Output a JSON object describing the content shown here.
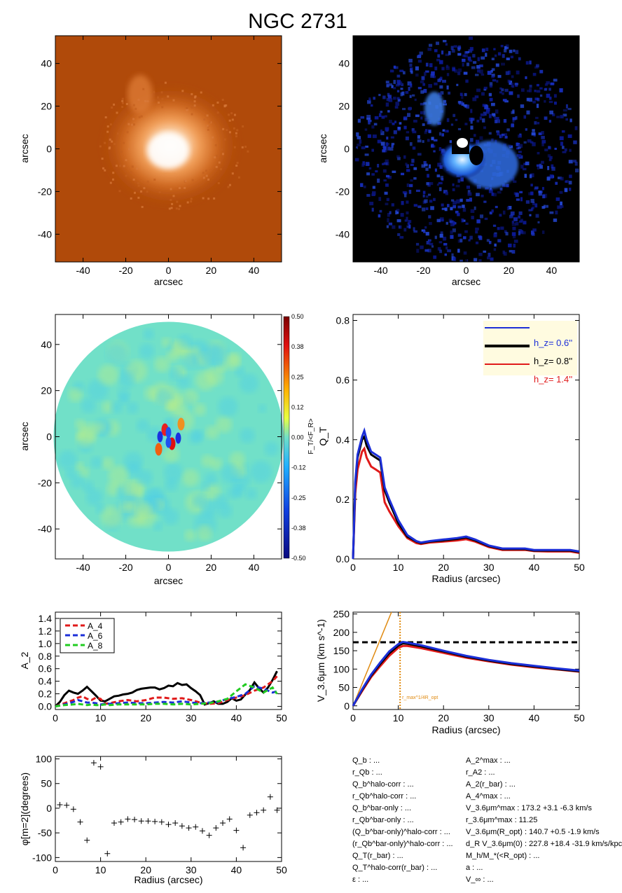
{
  "title": "NGC 2731",
  "colors": {
    "blue": "#1c2fd8",
    "black": "#000000",
    "red": "#e01a1a",
    "green": "#22cc22",
    "orange": "#e08a10",
    "legend_bg": "#fffbe0",
    "image1_bg": "#b04a0a",
    "image2_bg": "#000000",
    "field_bg": "#71e0c8"
  },
  "chart_data": [
    {
      "id": "panel-1",
      "type": "heatmap",
      "title": "",
      "xlabel": "arcsec",
      "ylabel": "arcsec",
      "xlim": [
        -53,
        53
      ],
      "ylim": [
        -53,
        53
      ],
      "x_ticks": [
        -40,
        -20,
        0,
        20,
        40
      ],
      "y_ticks": [
        -40,
        -20,
        0,
        20,
        40
      ],
      "colormap": "orange"
    },
    {
      "id": "panel-2",
      "type": "heatmap",
      "title": "",
      "xlabel": "arcsec",
      "ylabel": "arcsec",
      "xlim": [
        -53,
        53
      ],
      "ylim": [
        -53,
        53
      ],
      "x_ticks": [
        -40,
        -20,
        0,
        20,
        40
      ],
      "y_ticks": [
        -40,
        -20,
        0,
        20,
        40
      ],
      "colormap": "blue"
    },
    {
      "id": "panel-3",
      "type": "heatmap",
      "title": "",
      "xlabel": "arcsec",
      "ylabel": "arcsec",
      "xlim": [
        -53,
        53
      ],
      "ylim": [
        -53,
        53
      ],
      "x_ticks": [
        -40,
        -20,
        0,
        20,
        40
      ],
      "y_ticks": [
        -40,
        -20,
        0,
        20,
        40
      ],
      "colorbar": {
        "label": "F_T/<F_R>",
        "range": [
          -0.5,
          0.5
        ],
        "ticks": [
          "0.50",
          "0.38",
          "0.25",
          "0.12",
          "0.00",
          "-0.12",
          "-0.25",
          "-0.38",
          "-0.50"
        ]
      }
    },
    {
      "id": "panel-4",
      "type": "line",
      "xlabel": "Radius (arcsec)",
      "ylabel": "Q_T",
      "xlim": [
        0,
        50
      ],
      "ylim": [
        0,
        0.82
      ],
      "x_ticks": [
        0,
        10,
        20,
        30,
        40,
        50
      ],
      "y_ticks": [
        "0.0",
        "0.2",
        "0.4",
        "0.6",
        "0.8"
      ],
      "legend": {
        "position": "top-right",
        "entries": [
          {
            "label": "h_z= 0.6''",
            "color": "#1c2fd8"
          },
          {
            "label": "h_z= 0.8''",
            "color": "#000000"
          },
          {
            "label": "h_z= 1.4''",
            "color": "#e01a1a"
          }
        ]
      },
      "series": [
        {
          "name": "h_z= 0.6''",
          "color": "#1c2fd8",
          "x": [
            0,
            0.5,
            1,
            2,
            2.5,
            3,
            4,
            5,
            6,
            7,
            8,
            10,
            12,
            14,
            15,
            17,
            20,
            23,
            25,
            27,
            30,
            33,
            35,
            38,
            40,
            43,
            45,
            48,
            50
          ],
          "y": [
            0.0,
            0.26,
            0.35,
            0.41,
            0.43,
            0.4,
            0.36,
            0.35,
            0.34,
            0.24,
            0.2,
            0.13,
            0.08,
            0.06,
            0.055,
            0.06,
            0.065,
            0.07,
            0.075,
            0.065,
            0.045,
            0.035,
            0.035,
            0.035,
            0.03,
            0.03,
            0.03,
            0.03,
            0.025
          ]
        },
        {
          "name": "h_z= 0.8''",
          "color": "#000000",
          "x": [
            0,
            0.5,
            1,
            2,
            2.5,
            3,
            4,
            5,
            6,
            7,
            8,
            10,
            12,
            14,
            15,
            17,
            20,
            23,
            25,
            27,
            30,
            33,
            35,
            38,
            40,
            43,
            45,
            48,
            50
          ],
          "y": [
            0.0,
            0.25,
            0.34,
            0.4,
            0.41,
            0.38,
            0.35,
            0.34,
            0.33,
            0.23,
            0.19,
            0.12,
            0.075,
            0.058,
            0.053,
            0.058,
            0.062,
            0.067,
            0.072,
            0.062,
            0.043,
            0.033,
            0.033,
            0.033,
            0.028,
            0.028,
            0.028,
            0.028,
            0.023
          ]
        },
        {
          "name": "h_z= 1.4''",
          "color": "#e01a1a",
          "x": [
            0,
            0.5,
            1,
            2,
            2.5,
            3,
            4,
            5,
            6,
            7,
            8,
            10,
            12,
            14,
            15,
            17,
            20,
            23,
            25,
            27,
            30,
            33,
            35,
            38,
            40,
            43,
            45,
            48,
            50
          ],
          "y": [
            0.0,
            0.22,
            0.3,
            0.36,
            0.37,
            0.34,
            0.31,
            0.3,
            0.29,
            0.19,
            0.16,
            0.11,
            0.07,
            0.053,
            0.05,
            0.055,
            0.058,
            0.062,
            0.066,
            0.058,
            0.04,
            0.03,
            0.03,
            0.03,
            0.026,
            0.025,
            0.025,
            0.025,
            0.02
          ]
        }
      ]
    },
    {
      "id": "panel-5",
      "type": "line",
      "xlabel": "",
      "ylabel": "A_2",
      "xlim": [
        0,
        50
      ],
      "ylim": [
        -0.05,
        1.5
      ],
      "x_ticks": [
        0,
        10,
        20,
        30,
        40,
        50
      ],
      "y_ticks": [
        "0.0",
        "0.2",
        "0.4",
        "0.6",
        "0.8",
        "1.0",
        "1.2",
        "1.4"
      ],
      "legend": {
        "position": "top-left",
        "entries": [
          {
            "label": "A_4",
            "color": "#e01a1a"
          },
          {
            "label": "A_6",
            "color": "#1c2fd8"
          },
          {
            "label": "A_8",
            "color": "#22cc22"
          }
        ]
      },
      "series": [
        {
          "name": "A_2",
          "color": "#000000",
          "dashed": false,
          "x": [
            0,
            1,
            2,
            3,
            4,
            5,
            6,
            7,
            8,
            9,
            10,
            11,
            12,
            13,
            14,
            15,
            16,
            17,
            18,
            19,
            20,
            21,
            22,
            23,
            24,
            25,
            26,
            27,
            28,
            29,
            30,
            31,
            32,
            33,
            34,
            35,
            36,
            37,
            38,
            39,
            40,
            41,
            42,
            43,
            44,
            45,
            46,
            47,
            48,
            49
          ],
          "y": [
            0.0,
            0.07,
            0.18,
            0.25,
            0.22,
            0.2,
            0.25,
            0.31,
            0.24,
            0.17,
            0.09,
            0.08,
            0.12,
            0.16,
            0.17,
            0.19,
            0.2,
            0.22,
            0.26,
            0.28,
            0.29,
            0.3,
            0.3,
            0.27,
            0.29,
            0.33,
            0.32,
            0.37,
            0.34,
            0.35,
            0.29,
            0.24,
            0.18,
            0.03,
            0.05,
            0.08,
            0.04,
            0.04,
            0.07,
            0.13,
            0.09,
            0.11,
            0.19,
            0.26,
            0.38,
            0.29,
            0.22,
            0.3,
            0.42,
            0.56
          ]
        },
        {
          "name": "A_4",
          "color": "#e01a1a",
          "dashed": true,
          "x": [
            0,
            2,
            4,
            5,
            6,
            7,
            8,
            9,
            10,
            11,
            12,
            14,
            16,
            18,
            20,
            22,
            24,
            26,
            28,
            30,
            32,
            34,
            36,
            38,
            40,
            42,
            44,
            46,
            48,
            49
          ],
          "y": [
            0.0,
            0.05,
            0.1,
            0.14,
            0.16,
            0.12,
            0.1,
            0.14,
            0.12,
            0.04,
            0.05,
            0.08,
            0.1,
            0.08,
            0.1,
            0.14,
            0.14,
            0.12,
            0.13,
            0.1,
            0.06,
            0.04,
            0.05,
            0.1,
            0.14,
            0.18,
            0.25,
            0.3,
            0.4,
            0.48
          ]
        },
        {
          "name": "A_6",
          "color": "#1c2fd8",
          "dashed": true,
          "x": [
            0,
            2,
            4,
            5,
            6,
            7,
            8,
            9,
            10,
            11,
            12,
            14,
            16,
            18,
            20,
            22,
            24,
            26,
            28,
            30,
            32,
            34,
            36,
            38,
            40,
            42,
            44,
            46,
            48,
            49
          ],
          "y": [
            0.0,
            0.03,
            0.07,
            0.1,
            0.08,
            0.06,
            0.06,
            0.05,
            0.03,
            0.04,
            0.04,
            0.05,
            0.06,
            0.05,
            0.05,
            0.06,
            0.07,
            0.06,
            0.08,
            0.06,
            0.05,
            0.06,
            0.07,
            0.12,
            0.15,
            0.2,
            0.32,
            0.28,
            0.22,
            0.24
          ]
        },
        {
          "name": "A_8",
          "color": "#22cc22",
          "dashed": true,
          "x": [
            0,
            2,
            4,
            5,
            6,
            7,
            8,
            9,
            10,
            11,
            12,
            14,
            16,
            18,
            20,
            22,
            24,
            26,
            28,
            30,
            32,
            34,
            36,
            38,
            40,
            42,
            44,
            46,
            48,
            49
          ],
          "y": [
            0.0,
            0.02,
            0.03,
            0.04,
            0.03,
            0.02,
            0.03,
            0.02,
            0.02,
            0.03,
            0.02,
            0.03,
            0.03,
            0.03,
            0.03,
            0.04,
            0.04,
            0.03,
            0.04,
            0.03,
            0.04,
            0.05,
            0.08,
            0.12,
            0.24,
            0.35,
            0.3,
            0.22,
            0.3,
            0.2
          ]
        }
      ]
    },
    {
      "id": "panel-6",
      "type": "line",
      "xlabel": "Radius (arcsec)",
      "ylabel": "V_3.6μm (km s^-1)",
      "xlim": [
        0,
        50
      ],
      "ylim": [
        -10,
        255
      ],
      "x_ticks": [
        0,
        10,
        20,
        30,
        40,
        50
      ],
      "y_ticks": [
        0,
        50,
        100,
        150,
        200,
        250
      ],
      "vmax_line": 173,
      "r_mark": {
        "x": 10.4,
        "label": "r_max^1/4R_opt"
      },
      "orange_line": {
        "x": [
          0,
          8.5
        ],
        "y": [
          0,
          255
        ]
      },
      "series": [
        {
          "name": "",
          "color": "#1c2fd8",
          "x": [
            0,
            2,
            4,
            6,
            8,
            10,
            11,
            12,
            15,
            20,
            25,
            30,
            35,
            40,
            45,
            50
          ],
          "y": [
            0,
            45,
            85,
            118,
            148,
            168,
            174,
            172,
            165,
            150,
            136,
            125,
            116,
            109,
            102,
            96
          ]
        },
        {
          "name": "",
          "color": "#000000",
          "x": [
            0,
            2,
            4,
            6,
            8,
            10,
            11,
            12,
            15,
            20,
            25,
            30,
            35,
            40,
            45,
            50
          ],
          "y": [
            0,
            43,
            82,
            114,
            143,
            164,
            170,
            169,
            162,
            148,
            134,
            123,
            114,
            107,
            100,
            94
          ]
        },
        {
          "name": "",
          "color": "#e01a1a",
          "x": [
            0,
            2,
            4,
            6,
            8,
            10,
            11,
            12,
            15,
            20,
            25,
            30,
            35,
            40,
            45,
            50
          ],
          "y": [
            0,
            40,
            78,
            108,
            136,
            158,
            163,
            163,
            157,
            144,
            131,
            121,
            112,
            105,
            99,
            93
          ]
        }
      ]
    },
    {
      "id": "panel-7",
      "type": "scatter",
      "xlabel": "Radius (arcsec)",
      "ylabel": "φ[m=2](degrees)",
      "xlim": [
        0,
        50
      ],
      "ylim": [
        -108,
        105
      ],
      "x_ticks": [
        0,
        10,
        20,
        30,
        40,
        50
      ],
      "y_ticks": [
        -100,
        -50,
        0,
        50,
        100
      ],
      "series": [
        {
          "name": "",
          "color": "#000000",
          "x": [
            1,
            2.5,
            4,
            5.5,
            7,
            8.5,
            10,
            11.5,
            13,
            14.5,
            16,
            17.5,
            19,
            20.5,
            22,
            23.5,
            25,
            26.5,
            28,
            29.5,
            31,
            32.5,
            34,
            35.5,
            37,
            38.5,
            40,
            41.5,
            43,
            44.5,
            46,
            47.5,
            49
          ],
          "y": [
            7,
            6,
            -2,
            -28,
            -65,
            92,
            84,
            -92,
            -30,
            -28,
            -22,
            -23,
            -26,
            -26,
            -27,
            -28,
            -33,
            -30,
            -36,
            -40,
            -38,
            -46,
            -55,
            -40,
            -30,
            -22,
            -45,
            -80,
            -14,
            -9,
            -4,
            23,
            -4
          ]
        }
      ]
    }
  ],
  "info": {
    "left": [
      "Q_b : ...",
      "r_Qb : ...",
      "Q_b^halo-corr : ...",
      "r_Qb^halo-corr : ...",
      "Q_b^bar-only : ...",
      "r_Qb^bar-only : ...",
      "(Q_b^bar-only)^halo-corr : ...",
      "(r_Qb^bar-only)^halo-corr : ...",
      "Q_T(r_bar) : ...",
      "Q_T^halo-corr(r_bar) : ...",
      "ε : ..."
    ],
    "right": [
      "A_2^max : ...",
      "r_A2 : ...",
      "A_2(r_bar) : ...",
      "A_4^max : ...",
      "V_3.6μm^max : 173.2 +3.1 -6.3 km/s",
      "r_3.6μm^max : 11.25",
      "V_3.6μm(R_opt) : 140.7 +0.5 -1.9 km/s",
      "d_R V_3.6μm(0) : 227.8 +18.4 -31.9 km/s/kpc",
      "M_h/M_*(<R_opt) : ...",
      "a : ...",
      "V_∞ : ..."
    ]
  }
}
